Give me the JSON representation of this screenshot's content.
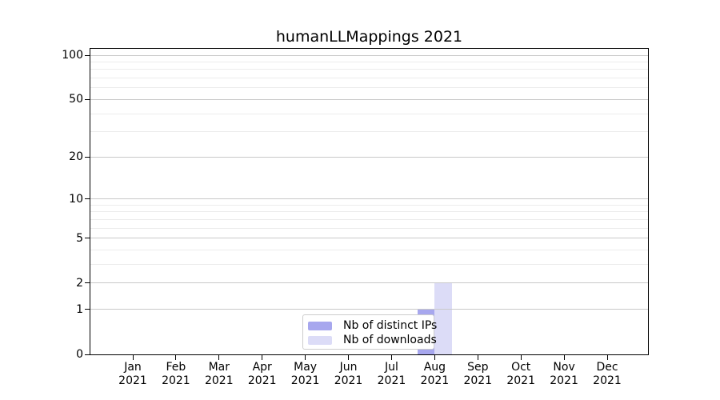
{
  "chart_data": {
    "type": "bar",
    "title": "humanLLMappings 2021",
    "categories": [
      "Jan",
      "Feb",
      "Mar",
      "Apr",
      "May",
      "Jun",
      "Jul",
      "Aug",
      "Sep",
      "Oct",
      "Nov",
      "Dec"
    ],
    "category_year": "2021",
    "series": [
      {
        "name": "Nb of distinct IPs",
        "color": "#a7a7ee",
        "values": [
          0,
          0,
          0,
          0,
          0,
          0,
          0,
          1,
          0,
          0,
          0,
          0
        ]
      },
      {
        "name": "Nb of downloads",
        "color": "#dcdcf7",
        "values": [
          0,
          0,
          0,
          0,
          0,
          0,
          0,
          2,
          0,
          0,
          0,
          0
        ]
      }
    ],
    "yscale": "log1p",
    "ylim": [
      0,
      112
    ],
    "y_major_ticks": [
      0,
      1,
      2,
      5,
      10,
      20,
      50,
      100
    ],
    "y_minor_gridlines": [
      3,
      4,
      6,
      7,
      8,
      9,
      30,
      40,
      60,
      70,
      80,
      90
    ],
    "grid": "on",
    "legend_position": "bottom-center",
    "colors": {
      "major_grid": "#c9c9c9",
      "minor_grid": "#ececec",
      "axis": "#000000",
      "background": "#ffffff"
    }
  }
}
